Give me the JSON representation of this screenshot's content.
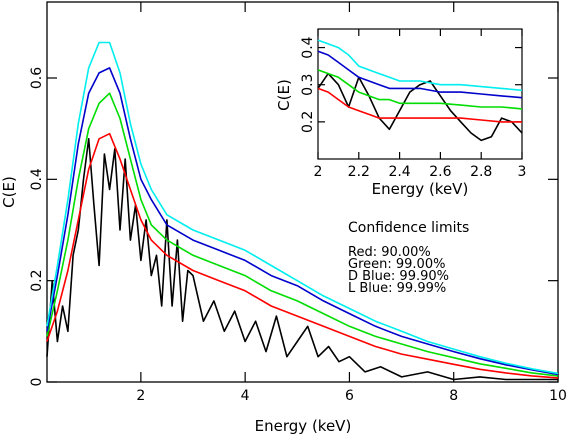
{
  "chart_data": [
    {
      "type": "line",
      "xlabel": "Energy (keV)",
      "ylabel": "C(E)",
      "xlim": [
        0.2,
        10
      ],
      "ylim": [
        0,
        0.75
      ],
      "x_ticks": [
        2,
        4,
        6,
        8,
        10
      ],
      "y_ticks": [
        0,
        0.2,
        0.4,
        0.6
      ],
      "x_tick_labels": [
        "2",
        "4",
        "6",
        "8",
        "10"
      ],
      "y_tick_labels": [
        "0",
        "0.2",
        "0.4",
        "0.6"
      ],
      "grid": false,
      "series": [
        {
          "color": "#000000",
          "x": [
            0.2,
            0.3,
            0.4,
            0.5,
            0.6,
            0.7,
            0.8,
            0.9,
            1.0,
            1.1,
            1.2,
            1.3,
            1.4,
            1.5,
            1.6,
            1.7,
            1.8,
            1.9,
            2.0,
            2.1,
            2.2,
            2.3,
            2.4,
            2.5,
            2.6,
            2.7,
            2.8,
            2.9,
            3.0,
            3.2,
            3.4,
            3.6,
            3.8,
            4.0,
            4.2,
            4.4,
            4.6,
            4.8,
            5.0,
            5.2,
            5.4,
            5.6,
            5.8,
            6.0,
            6.3,
            6.6,
            7.0,
            7.5,
            8.0,
            8.5,
            9.0,
            9.5,
            10.0
          ],
          "y": [
            0.05,
            0.2,
            0.08,
            0.15,
            0.1,
            0.25,
            0.3,
            0.4,
            0.48,
            0.35,
            0.23,
            0.45,
            0.38,
            0.46,
            0.3,
            0.44,
            0.28,
            0.35,
            0.24,
            0.32,
            0.21,
            0.25,
            0.15,
            0.32,
            0.15,
            0.28,
            0.12,
            0.22,
            0.21,
            0.12,
            0.16,
            0.1,
            0.14,
            0.08,
            0.12,
            0.06,
            0.13,
            0.05,
            0.08,
            0.11,
            0.05,
            0.07,
            0.04,
            0.05,
            0.02,
            0.03,
            0.01,
            0.02,
            0.005,
            0.01,
            0.005,
            0.005,
            0.005
          ]
        },
        {
          "color": "#ff0000",
          "x": [
            0.2,
            0.4,
            0.6,
            0.8,
            1.0,
            1.2,
            1.4,
            1.6,
            1.8,
            2.0,
            2.2,
            2.5,
            3.0,
            3.5,
            4.0,
            4.5,
            5.0,
            5.5,
            6.0,
            6.5,
            7.0,
            7.5,
            8.0,
            8.5,
            9.0,
            9.5,
            10.0
          ],
          "y": [
            0.08,
            0.14,
            0.22,
            0.32,
            0.42,
            0.48,
            0.49,
            0.44,
            0.38,
            0.32,
            0.28,
            0.25,
            0.22,
            0.2,
            0.18,
            0.15,
            0.13,
            0.11,
            0.09,
            0.07,
            0.055,
            0.045,
            0.035,
            0.025,
            0.018,
            0.012,
            0.008
          ]
        },
        {
          "color": "#00dd00",
          "x": [
            0.2,
            0.4,
            0.6,
            0.8,
            1.0,
            1.2,
            1.4,
            1.6,
            1.8,
            2.0,
            2.2,
            2.5,
            3.0,
            3.5,
            4.0,
            4.5,
            5.0,
            5.5,
            6.0,
            6.5,
            7.0,
            7.5,
            8.0,
            8.5,
            9.0,
            9.5,
            10.0
          ],
          "y": [
            0.09,
            0.18,
            0.28,
            0.4,
            0.5,
            0.55,
            0.57,
            0.52,
            0.44,
            0.36,
            0.31,
            0.28,
            0.25,
            0.23,
            0.21,
            0.18,
            0.16,
            0.135,
            0.11,
            0.09,
            0.075,
            0.06,
            0.048,
            0.036,
            0.027,
            0.018,
            0.012
          ]
        },
        {
          "color": "#0000cc",
          "x": [
            0.2,
            0.4,
            0.6,
            0.8,
            1.0,
            1.2,
            1.4,
            1.6,
            1.8,
            2.0,
            2.2,
            2.5,
            3.0,
            3.5,
            4.0,
            4.5,
            5.0,
            5.5,
            6.0,
            6.5,
            7.0,
            7.5,
            8.0,
            8.5,
            9.0,
            9.5,
            10.0
          ],
          "y": [
            0.1,
            0.21,
            0.33,
            0.47,
            0.57,
            0.61,
            0.62,
            0.57,
            0.48,
            0.4,
            0.36,
            0.31,
            0.28,
            0.26,
            0.24,
            0.21,
            0.19,
            0.16,
            0.135,
            0.11,
            0.09,
            0.075,
            0.06,
            0.046,
            0.034,
            0.024,
            0.015
          ]
        },
        {
          "color": "#00eeee",
          "x": [
            0.2,
            0.4,
            0.6,
            0.8,
            1.0,
            1.2,
            1.4,
            1.6,
            1.8,
            2.0,
            2.2,
            2.5,
            3.0,
            3.5,
            4.0,
            4.5,
            5.0,
            5.5,
            6.0,
            6.5,
            7.0,
            7.5,
            8.0,
            8.5,
            9.0,
            9.5,
            10.0
          ],
          "y": [
            0.11,
            0.23,
            0.36,
            0.51,
            0.62,
            0.67,
            0.67,
            0.61,
            0.51,
            0.43,
            0.38,
            0.33,
            0.3,
            0.28,
            0.26,
            0.23,
            0.2,
            0.17,
            0.145,
            0.12,
            0.1,
            0.08,
            0.065,
            0.05,
            0.037,
            0.026,
            0.017
          ]
        }
      ],
      "annotation": {
        "title": "Confidence limits",
        "lines": [
          "Red: 90.00%",
          "Green: 99.00%",
          "D Blue: 99.90%",
          "L Blue: 99.99%"
        ]
      }
    },
    {
      "type": "line",
      "xlabel": "Energy (keV)",
      "ylabel": "C(E)",
      "xlim": [
        2,
        3
      ],
      "ylim": [
        0.1,
        0.45
      ],
      "x_ticks": [
        2,
        2.2,
        2.4,
        2.6,
        2.8,
        3
      ],
      "y_ticks": [
        0.2,
        0.3,
        0.4
      ],
      "x_tick_labels": [
        "2",
        "2.2",
        "2.4",
        "2.6",
        "2.8",
        "3"
      ],
      "y_tick_labels": [
        "0.2",
        "0.3",
        "0.4"
      ],
      "grid": false,
      "series": [
        {
          "color": "#000000",
          "x": [
            2.0,
            2.05,
            2.1,
            2.15,
            2.2,
            2.25,
            2.3,
            2.35,
            2.4,
            2.45,
            2.5,
            2.55,
            2.6,
            2.65,
            2.7,
            2.75,
            2.8,
            2.85,
            2.9,
            2.95,
            3.0
          ],
          "y": [
            0.29,
            0.33,
            0.3,
            0.24,
            0.32,
            0.27,
            0.21,
            0.18,
            0.23,
            0.28,
            0.3,
            0.31,
            0.27,
            0.23,
            0.2,
            0.17,
            0.15,
            0.16,
            0.21,
            0.2,
            0.17
          ]
        },
        {
          "color": "#ff0000",
          "x": [
            2.0,
            2.05,
            2.1,
            2.15,
            2.2,
            2.25,
            2.3,
            2.35,
            2.4,
            2.5,
            2.6,
            2.7,
            2.8,
            2.9,
            3.0
          ],
          "y": [
            0.29,
            0.28,
            0.26,
            0.24,
            0.23,
            0.22,
            0.21,
            0.21,
            0.21,
            0.21,
            0.21,
            0.21,
            0.205,
            0.2,
            0.2
          ]
        },
        {
          "color": "#00dd00",
          "x": [
            2.0,
            2.05,
            2.1,
            2.15,
            2.2,
            2.25,
            2.3,
            2.35,
            2.4,
            2.5,
            2.6,
            2.7,
            2.8,
            2.9,
            3.0
          ],
          "y": [
            0.34,
            0.33,
            0.32,
            0.3,
            0.28,
            0.27,
            0.26,
            0.26,
            0.25,
            0.25,
            0.25,
            0.245,
            0.24,
            0.24,
            0.235
          ]
        },
        {
          "color": "#0000cc",
          "x": [
            2.0,
            2.05,
            2.1,
            2.15,
            2.2,
            2.25,
            2.3,
            2.35,
            2.4,
            2.5,
            2.6,
            2.7,
            2.8,
            2.9,
            3.0
          ],
          "y": [
            0.39,
            0.38,
            0.36,
            0.34,
            0.32,
            0.31,
            0.3,
            0.29,
            0.29,
            0.29,
            0.28,
            0.28,
            0.275,
            0.27,
            0.265
          ]
        },
        {
          "color": "#00eeee",
          "x": [
            2.0,
            2.05,
            2.1,
            2.15,
            2.2,
            2.25,
            2.3,
            2.35,
            2.4,
            2.5,
            2.6,
            2.7,
            2.8,
            2.9,
            3.0
          ],
          "y": [
            0.42,
            0.41,
            0.4,
            0.38,
            0.35,
            0.34,
            0.33,
            0.32,
            0.31,
            0.31,
            0.3,
            0.3,
            0.295,
            0.29,
            0.285
          ]
        }
      ]
    }
  ]
}
